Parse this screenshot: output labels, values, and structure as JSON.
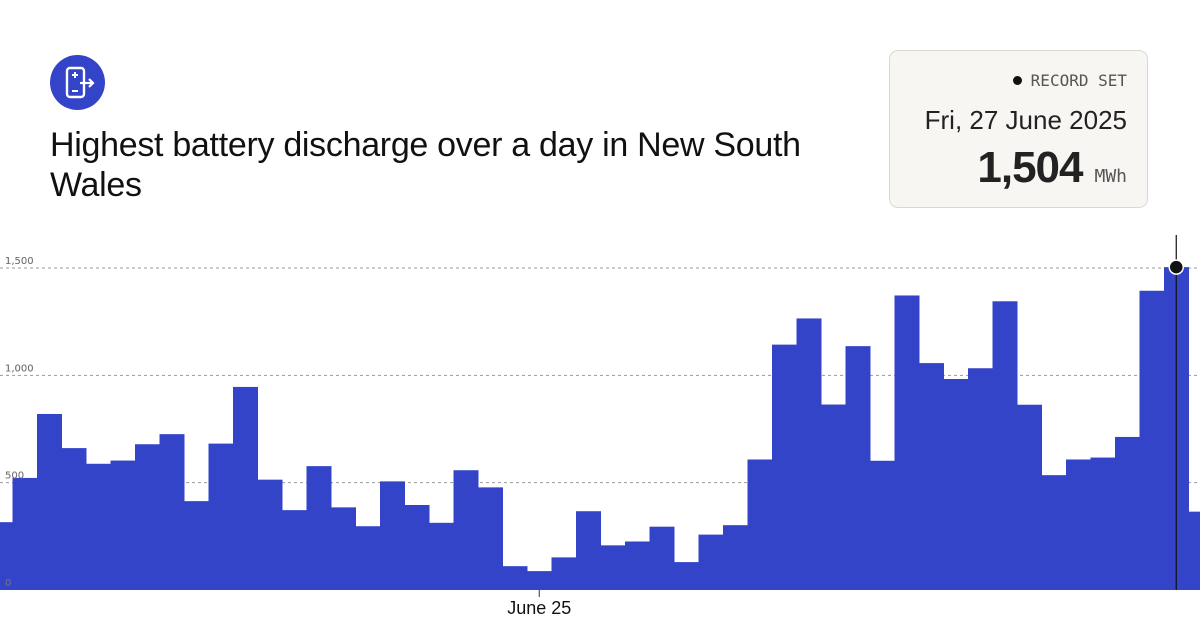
{
  "header": {
    "title": "Highest battery discharge over a day in New South Wales",
    "logo_icon": "battery-discharge-icon"
  },
  "record_card": {
    "badge": "RECORD SET",
    "date": "Fri, 27 June 2025",
    "value": "1,504",
    "unit": "MWh"
  },
  "colors": {
    "bar": "#3344c8",
    "accent": "#3344c8",
    "grid": "#999999",
    "marker": "#111111"
  },
  "chart_data": {
    "type": "bar",
    "title": "Highest battery discharge over a day in New South Wales",
    "xlabel": "",
    "ylabel": "",
    "unit": "MWh",
    "ylim": [
      0,
      1500
    ],
    "y_ticks": [
      {
        "value": 0,
        "label": "0"
      },
      {
        "value": 500,
        "label": "500"
      },
      {
        "value": 1000,
        "label": "1,000"
      },
      {
        "value": 1500,
        "label": "1,500"
      }
    ],
    "x_ticks": [
      {
        "index": 22,
        "label": "June 25"
      }
    ],
    "grid": true,
    "values": [
      316,
      522,
      820,
      661,
      588,
      603,
      679,
      726,
      414,
      682,
      946,
      514,
      372,
      577,
      385,
      297,
      506,
      396,
      313,
      558,
      478,
      111,
      88,
      152,
      367,
      208,
      226,
      295,
      130,
      258,
      302,
      608,
      1143,
      1265,
      864,
      1136,
      602,
      1372,
      1057,
      983,
      1033,
      1345,
      863,
      535,
      608,
      617,
      713,
      1394,
      1504,
      365
    ],
    "highlight": {
      "index": 48,
      "value": 1504
    }
  }
}
